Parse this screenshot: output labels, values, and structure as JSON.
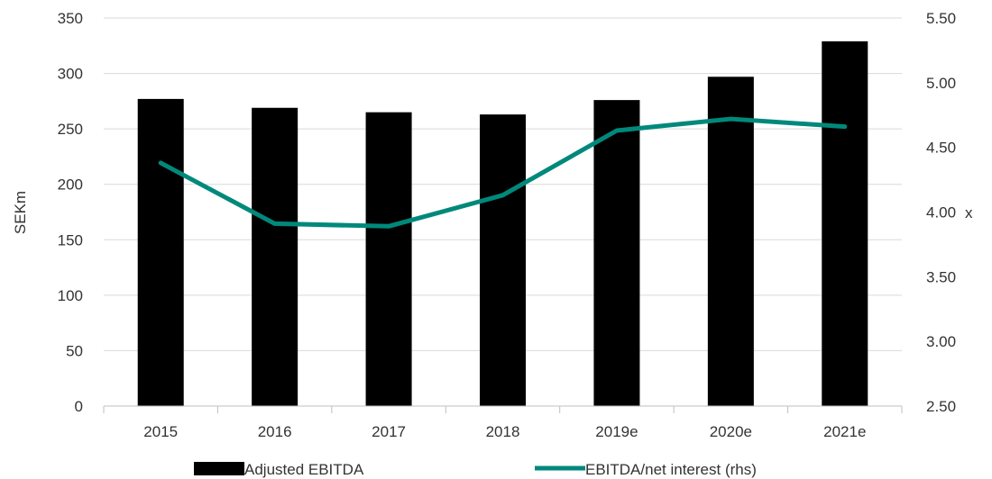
{
  "chart_data": {
    "type": "bar",
    "categories": [
      "2015",
      "2016",
      "2017",
      "2018",
      "2019e",
      "2020e",
      "2021e"
    ],
    "series": [
      {
        "name": "Adjusted EBITDA",
        "type": "bar",
        "axis": "left",
        "values": [
          277,
          269,
          265,
          263,
          276,
          297,
          329
        ],
        "color": "#000000"
      },
      {
        "name": "EBITDA/net interest (rhs)",
        "type": "line",
        "axis": "right",
        "values": [
          4.38,
          3.91,
          3.89,
          4.13,
          4.63,
          4.72,
          4.66
        ],
        "color": "#00897b"
      }
    ],
    "ylabel": "SEKm",
    "y2label": "x",
    "ylim": [
      0,
      350
    ],
    "yticks": [
      "0",
      "50",
      "100",
      "150",
      "200",
      "250",
      "300",
      "350"
    ],
    "y2lim": [
      2.5,
      5.5
    ],
    "y2ticks": [
      "2.50",
      "3.00",
      "3.50",
      "4.00",
      "4.50",
      "5.00",
      "5.50"
    ],
    "grid": true,
    "legend_position": "bottom"
  }
}
